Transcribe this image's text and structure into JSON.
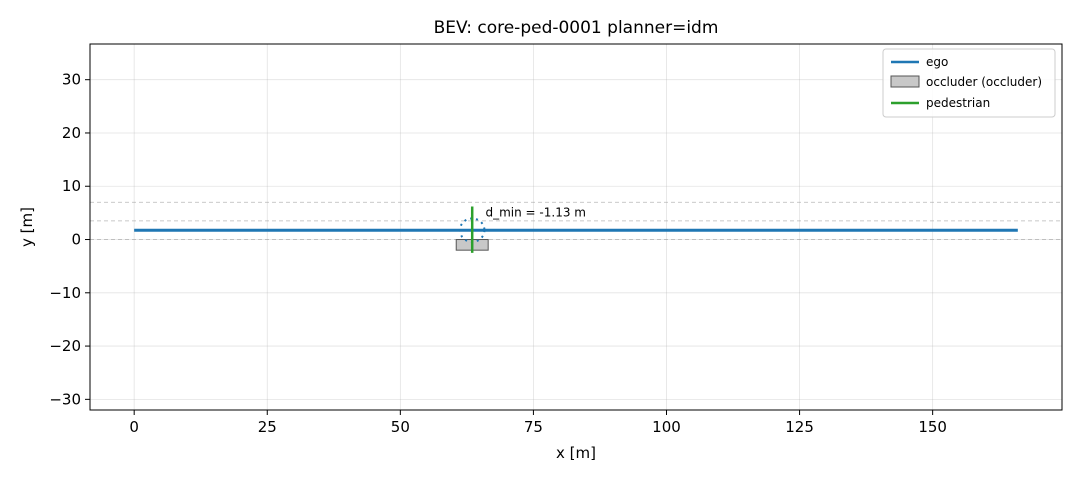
{
  "chart_data": {
    "type": "line",
    "title": "BEV: core-ped-0001  planner=idm",
    "xlabel": "x [m]",
    "ylabel": "y [m]",
    "xlim": [
      -8.3,
      174.3
    ],
    "ylim": [
      -32.0,
      36.7
    ],
    "xticks": [
      0,
      25,
      50,
      75,
      100,
      125,
      150
    ],
    "yticks": [
      -30,
      -20,
      -10,
      0,
      10,
      20,
      30
    ],
    "xtick_labels": [
      "0",
      "25",
      "50",
      "75",
      "100",
      "125",
      "150"
    ],
    "ytick_labels": [
      "−30",
      "−20",
      "−10",
      "0",
      "10",
      "20",
      "30"
    ],
    "grid": true,
    "legend_position": "top-right",
    "lane_lines_y": [
      0,
      3.5,
      7.0
    ],
    "series": [
      {
        "name": "ego",
        "kind": "line",
        "color": "#1f77b4",
        "x": [
          0,
          166
        ],
        "y": [
          1.75,
          1.75
        ]
      },
      {
        "name": "occluder (occluder)",
        "kind": "rect",
        "color": "#c8c8c8",
        "edge_color": "#555555",
        "x_range": [
          60.5,
          66.5
        ],
        "y_range": [
          -2.0,
          0.0
        ]
      },
      {
        "name": "pedestrian",
        "kind": "line",
        "color": "#2ca02c",
        "x": [
          63.5,
          63.5
        ],
        "y": [
          -2.5,
          6.2
        ]
      }
    ],
    "ego_footprint": {
      "cx": 63.5,
      "cy": 1.75,
      "rx": 2.3,
      "ry": 2.2,
      "color": "#1f77b4"
    },
    "annotations": [
      {
        "text": "d_min = -1.13 m",
        "x": 66.0,
        "y": 4.3
      }
    ]
  }
}
